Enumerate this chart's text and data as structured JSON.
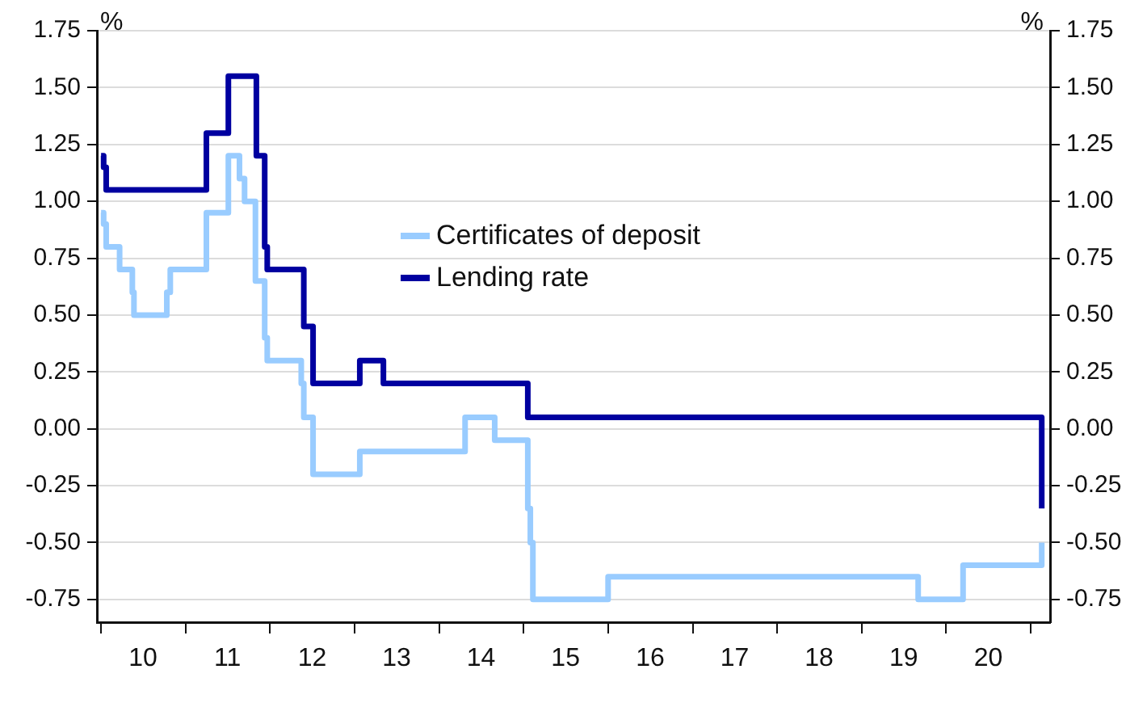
{
  "chart_data": {
    "type": "step",
    "ylabel": "%",
    "y2label": "%",
    "xlim": [
      "2009-12-14",
      "2021-03-25"
    ],
    "xticks": [
      {
        "value": "2010-01-01",
        "label": null
      },
      {
        "value": "2010-07-01",
        "label": "10"
      },
      {
        "value": "2011-01-01",
        "label": null
      },
      {
        "value": "2011-07-01",
        "label": "11"
      },
      {
        "value": "2012-01-01",
        "label": null
      },
      {
        "value": "2012-07-01",
        "label": "12"
      },
      {
        "value": "2013-01-01",
        "label": null
      },
      {
        "value": "2013-07-01",
        "label": "13"
      },
      {
        "value": "2014-01-01",
        "label": null
      },
      {
        "value": "2014-07-01",
        "label": "14"
      },
      {
        "value": "2015-01-01",
        "label": null
      },
      {
        "value": "2015-07-01",
        "label": "15"
      },
      {
        "value": "2016-01-01",
        "label": null
      },
      {
        "value": "2016-07-01",
        "label": "16"
      },
      {
        "value": "2017-01-01",
        "label": null
      },
      {
        "value": "2017-07-01",
        "label": "17"
      },
      {
        "value": "2018-01-01",
        "label": null
      },
      {
        "value": "2018-07-01",
        "label": "18"
      },
      {
        "value": "2019-01-01",
        "label": null
      },
      {
        "value": "2019-07-01",
        "label": "19"
      },
      {
        "value": "2020-01-01",
        "label": null
      },
      {
        "value": "2020-07-01",
        "label": "20"
      },
      {
        "value": "2021-01-01",
        "label": null
      }
    ],
    "ylim": [
      -0.85,
      1.75
    ],
    "yticks": [
      {
        "value": -0.75,
        "label": "-0.75"
      },
      {
        "value": -0.5,
        "label": "-0.50"
      },
      {
        "value": -0.25,
        "label": "-0.25"
      },
      {
        "value": 0,
        "label": "0.00"
      },
      {
        "value": 0.25,
        "label": "0.25"
      },
      {
        "value": 0.5,
        "label": "0.50"
      },
      {
        "value": 0.75,
        "label": "0.75"
      },
      {
        "value": 1,
        "label": "1.00"
      },
      {
        "value": 1.25,
        "label": "1.25"
      },
      {
        "value": 1.5,
        "label": "1.50"
      },
      {
        "value": 1.75,
        "label": "1.75"
      }
    ],
    "y2lim": [
      -0.85,
      1.75
    ],
    "y2ticks": [
      {
        "value": -0.75,
        "label": "-0.75"
      },
      {
        "value": -0.5,
        "label": "-0.50"
      },
      {
        "value": -0.25,
        "label": "-0.25"
      },
      {
        "value": 0,
        "label": "0.00"
      },
      {
        "value": 0.25,
        "label": "0.25"
      },
      {
        "value": 0.5,
        "label": "0.50"
      },
      {
        "value": 0.75,
        "label": "0.75"
      },
      {
        "value": 1,
        "label": "1.00"
      },
      {
        "value": 1.25,
        "label": "1.25"
      },
      {
        "value": 1.5,
        "label": "1.50"
      },
      {
        "value": 1.75,
        "label": "1.75"
      }
    ],
    "grid": "y",
    "legend": "center",
    "marker": "none",
    "line_style": "solid",
    "series": [
      {
        "name": "Certificates of deposit",
        "color": "#99ccff",
        "x": [
          "2010-01-01",
          "2010-01-12",
          "2010-01-23",
          "2010-03-22",
          "2010-05-16",
          "2010-05-23",
          "2010-10-12",
          "2010-10-27",
          "2011-04-01",
          "2011-07-05",
          "2011-08-22",
          "2011-09-13",
          "2011-10-30",
          "2011-12-09",
          "2011-12-20",
          "2012-05-15",
          "2012-05-26",
          "2012-07-05",
          "2013-01-23",
          "2014-04-23",
          "2014-08-29",
          "2015-01-19",
          "2015-01-30",
          "2015-02-10",
          "2016-01-01",
          "2019-09-02",
          "2020-03-14",
          "2021-02-17"
        ],
        "values": [
          0.95,
          0.9,
          0.8,
          0.7,
          0.6,
          0.5,
          0.6,
          0.7,
          0.95,
          1.2,
          1.1,
          1.0,
          0.65,
          0.4,
          0.3,
          0.2,
          0.05,
          -0.2,
          -0.1,
          0.05,
          -0.05,
          -0.35,
          -0.5,
          -0.75,
          -0.65,
          -0.75,
          -0.6,
          -0.5
        ]
      },
      {
        "name": "Lending rate",
        "color": "#0000a0",
        "x": [
          "2010-01-01",
          "2010-01-12",
          "2010-01-23",
          "2011-04-01",
          "2011-07-05",
          "2011-11-03",
          "2011-12-09",
          "2011-12-20",
          "2012-05-26",
          "2012-07-05",
          "2013-01-23",
          "2013-05-05",
          "2015-01-19",
          "2021-02-17"
        ],
        "values": [
          1.2,
          1.15,
          1.05,
          1.3,
          1.55,
          1.2,
          0.8,
          0.7,
          0.45,
          0.2,
          0.3,
          0.2,
          0.05,
          -0.35
        ]
      }
    ]
  }
}
